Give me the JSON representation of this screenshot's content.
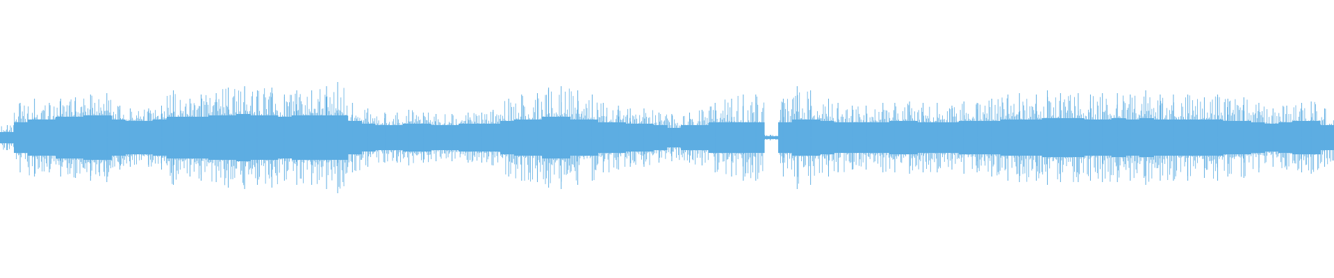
{
  "waveform": {
    "color": "#5dade2",
    "peaks": [
      9,
      25,
      28,
      25,
      28,
      29,
      31,
      32,
      23,
      21,
      21,
      23,
      34,
      28,
      31,
      32,
      36,
      37,
      34,
      36,
      31,
      34,
      34,
      37,
      40,
      25,
      21,
      18,
      18,
      20,
      18,
      17,
      17,
      18,
      18,
      20,
      28,
      31,
      32,
      36,
      37,
      34,
      31,
      25,
      23,
      21,
      21,
      18,
      17,
      18,
      20,
      25,
      28,
      31,
      31,
      2,
      28,
      37,
      34,
      28,
      25,
      23,
      23,
      25,
      25,
      26,
      25,
      25,
      23,
      26,
      25,
      28,
      31,
      32,
      31,
      34,
      32,
      32,
      31,
      32,
      32,
      31,
      34,
      31,
      31,
      31,
      29,
      31,
      28,
      29,
      25,
      21,
      23,
      25,
      26,
      21
    ],
    "body": [
      4,
      11,
      13,
      13,
      15,
      15,
      16,
      16,
      13,
      12,
      12,
      13,
      15,
      15,
      15,
      16,
      16,
      17,
      16,
      16,
      15,
      16,
      16,
      16,
      16,
      12,
      10,
      9,
      9,
      10,
      10,
      9,
      9,
      10,
      10,
      10,
      12,
      13,
      13,
      15,
      15,
      13,
      13,
      11,
      11,
      10,
      10,
      9,
      7,
      9,
      9,
      11,
      11,
      11,
      11,
      1,
      11,
      13,
      13,
      12,
      11,
      11,
      11,
      11,
      12,
      12,
      11,
      11,
      11,
      12,
      12,
      12,
      13,
      13,
      13,
      14,
      14,
      14,
      13,
      13,
      14,
      13,
      14,
      13,
      13,
      13,
      13,
      13,
      12,
      12,
      11,
      10,
      11,
      12,
      12,
      9
    ]
  }
}
